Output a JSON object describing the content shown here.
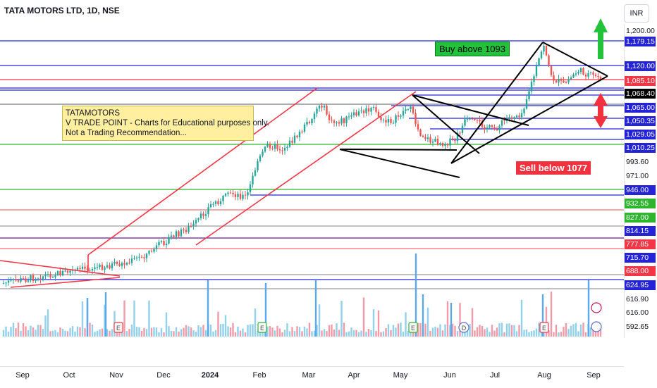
{
  "header": {
    "title": "TATA MOTORS LTD, 1D, NSE",
    "currency": "INR"
  },
  "annotations": {
    "note_lines": [
      "TATAMOTORS",
      "V TRADE POINT - Charts for Educational purposes only.",
      "Not a Trading Recommendation..."
    ],
    "buy": "Buy above 1093",
    "sell": "Sell below 1077"
  },
  "colors": {
    "up": "#26a69a",
    "down": "#ef5350",
    "blue_line": "#2424d6",
    "red_line": "#f23645",
    "green_line": "#2db52d"
  },
  "price_scale": {
    "top_label": "1,200.00",
    "labels": [
      {
        "text": "1,179.15",
        "style": "blue"
      },
      {
        "text": "1,120.00",
        "style": "blue"
      },
      {
        "text": "1,085.10",
        "style": "red"
      },
      {
        "text": "1,068.40",
        "style": "black"
      },
      {
        "text": "1,065.00",
        "style": "blue"
      },
      {
        "text": "1,050.35",
        "style": "blue"
      },
      {
        "text": "1,029.05",
        "style": "blue"
      },
      {
        "text": "1,010.25",
        "style": "blue"
      },
      {
        "text": "993.60",
        "style": "plain"
      },
      {
        "text": "971.00",
        "style": "plain"
      },
      {
        "text": "946.00",
        "style": "blue"
      },
      {
        "text": "932.55",
        "style": "green"
      },
      {
        "text": "827.00",
        "style": "green"
      },
      {
        "text": "814.15",
        "style": "blue"
      },
      {
        "text": "777.85",
        "style": "red"
      },
      {
        "text": "715.70",
        "style": "blue"
      },
      {
        "text": "688.00",
        "style": "red"
      },
      {
        "text": "624.95",
        "style": "blue"
      },
      {
        "text": "616.90",
        "style": "plain"
      },
      {
        "text": "616.00",
        "style": "plain"
      },
      {
        "text": "592.65",
        "style": "plain"
      }
    ]
  },
  "chart_data": {
    "type": "candlestick",
    "x_ticks": [
      "Sep",
      "Oct",
      "Nov",
      "Dec",
      "2024",
      "Feb",
      "Mar",
      "Apr",
      "May",
      "Jun",
      "Jul",
      "Aug",
      "Sep"
    ],
    "horizontal_levels": [
      1179.15,
      1120.0,
      1085.1,
      1068.4,
      1065.0,
      1050.35,
      1029.05,
      1010.25,
      946.0,
      932.55,
      827.0,
      814.15,
      777.85,
      715.7,
      688.0,
      624.95
    ]
  }
}
